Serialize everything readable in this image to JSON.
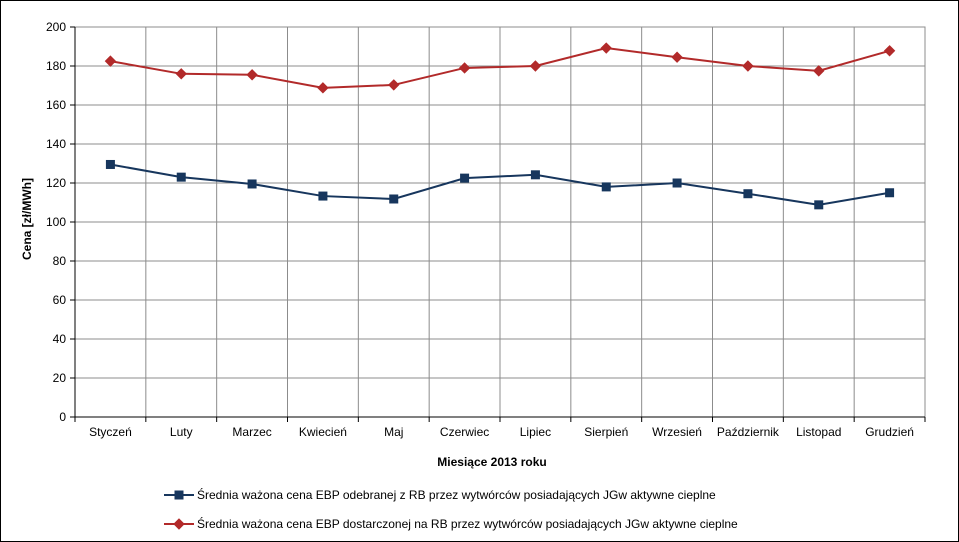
{
  "chart_data": {
    "type": "line",
    "title": "",
    "xlabel": "Miesiące 2013  roku",
    "ylabel": "Cena [zł/MWh]",
    "ylim": [
      0,
      200
    ],
    "y_ticks": [
      "0",
      "20",
      "40",
      "60",
      "80",
      "100",
      "120",
      "140",
      "160",
      "180",
      "200"
    ],
    "categories": [
      "Styczeń",
      "Luty",
      "Marzec",
      "Kwiecień",
      "Maj",
      "Czerwiec",
      "Lipiec",
      "Sierpień",
      "Wrzesień",
      "Październik",
      "Listopad",
      "Grudzień"
    ],
    "grid": true,
    "legend_position": "bottom",
    "series": [
      {
        "name": "Średnia ważona cena EBP odebranej z RB przez wytwórców posiadających JGw aktywne cieplne",
        "color": "#17365d",
        "marker": "square",
        "values": [
          129.5,
          123.0,
          119.5,
          113.3,
          111.8,
          122.5,
          124.2,
          118.0,
          120.0,
          114.5,
          108.8,
          115.0
        ]
      },
      {
        "name": "Średnia ważona cena EBP dostarczonej na RB przez wytwórców posiadających JGw aktywne cieplne",
        "color": "#b22a2a",
        "marker": "diamond",
        "values": [
          182.5,
          176.0,
          175.5,
          168.8,
          170.3,
          179.0,
          180.0,
          189.2,
          184.5,
          180.0,
          177.5,
          187.8
        ]
      }
    ]
  }
}
